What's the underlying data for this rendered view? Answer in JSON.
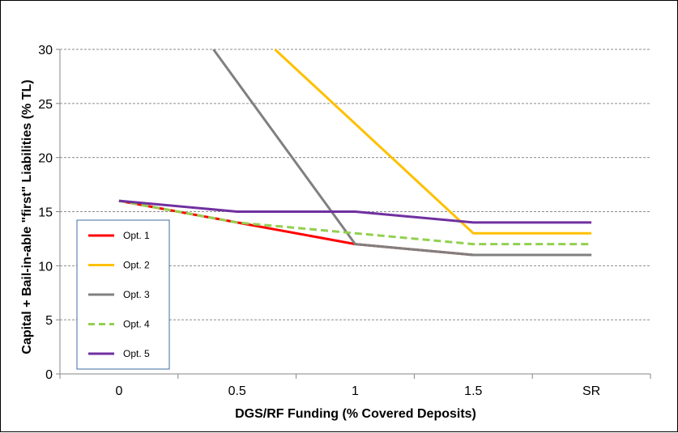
{
  "chart_data": {
    "type": "line",
    "title": "",
    "xlabel": "DGS/RF Funding (% Covered Deposits)",
    "ylabel": "Capital + Bail-in-able \"first\" Liabilities (% TL)",
    "categories": [
      "0",
      "0.5",
      "1",
      "1.5",
      "SR"
    ],
    "ylim": [
      0,
      30
    ],
    "yticks": [
      0,
      5,
      10,
      15,
      20,
      25,
      30
    ],
    "grid": "horizontal dashed",
    "legend_position": "left, inside plot",
    "series": [
      {
        "name": "Opt. 1",
        "color": "#ff0000",
        "dash": "solid",
        "values": [
          16,
          14,
          12,
          11,
          11
        ]
      },
      {
        "name": "Opt. 2",
        "color": "#ffc000",
        "dash": "solid",
        "values": [
          null,
          null,
          null,
          13,
          13
        ],
        "entry": {
          "x": 1.32,
          "y": 30
        }
      },
      {
        "name": "Opt. 3",
        "color": "#808080",
        "dash": "solid",
        "values": [
          null,
          null,
          12,
          11,
          11
        ],
        "entry": {
          "x": 0.8,
          "y": 30
        }
      },
      {
        "name": "Opt. 4",
        "color": "#92d050",
        "dash": "dashed",
        "values": [
          16,
          14,
          13,
          12,
          12
        ]
      },
      {
        "name": "Opt. 5",
        "color": "#7030a0",
        "dash": "solid",
        "values": [
          16,
          15,
          15,
          14,
          14
        ]
      }
    ]
  }
}
